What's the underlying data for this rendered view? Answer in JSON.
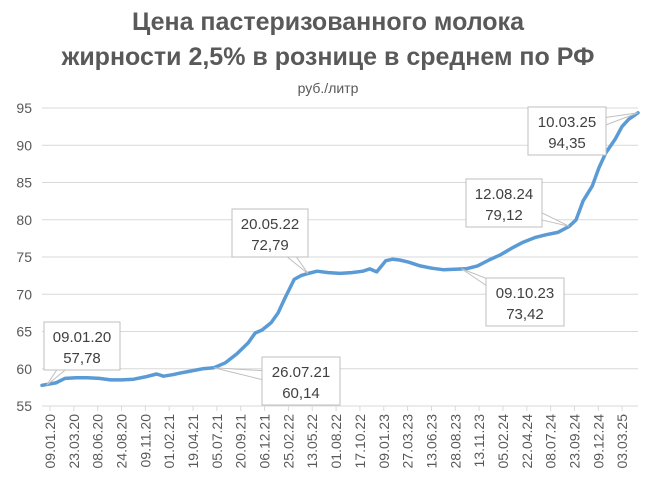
{
  "chart_data": {
    "type": "line",
    "title_line1": "Цена пастеризованного молока",
    "title_line2": "жирности 2,5% в рознице в среднем по РФ",
    "unit": "руб./литр",
    "ylim": [
      55,
      95
    ],
    "yticks": [
      "55",
      "60",
      "65",
      "70",
      "75",
      "80",
      "85",
      "90",
      "95"
    ],
    "xticks": [
      "09.01.20",
      "23.03.20",
      "08.06.20",
      "24.08.20",
      "09.11.20",
      "01.02.21",
      "19.04.21",
      "05.07.21",
      "20.09.21",
      "06.12.21",
      "25.02.22",
      "13.05.22",
      "01.08.22",
      "17.10.22",
      "09.01.23",
      "27.03.23",
      "13.06.23",
      "28.08.23",
      "13.11.23",
      "05.02.24",
      "22.04.24",
      "08.07.24",
      "23.09.24",
      "09.12.24",
      "03.03.25"
    ],
    "grid": true,
    "series": [
      {
        "color": "#5B9BD5",
        "points": [
          [
            0,
            57.78
          ],
          [
            0.6,
            58.1
          ],
          [
            1,
            58.7
          ],
          [
            1.5,
            58.8
          ],
          [
            2,
            58.8
          ],
          [
            2.5,
            58.7
          ],
          [
            3,
            58.5
          ],
          [
            3.5,
            58.5
          ],
          [
            4,
            58.6
          ],
          [
            4.5,
            58.9
          ],
          [
            5,
            59.3
          ],
          [
            5.3,
            59.0
          ],
          [
            5.7,
            59.2
          ],
          [
            6,
            59.4
          ],
          [
            6.5,
            59.7
          ],
          [
            7,
            60.0
          ],
          [
            7.5,
            60.14
          ],
          [
            8,
            60.8
          ],
          [
            8.5,
            62.0
          ],
          [
            9,
            63.5
          ],
          [
            9.3,
            64.8
          ],
          [
            9.6,
            65.2
          ],
          [
            10,
            66.2
          ],
          [
            10.3,
            67.5
          ],
          [
            10.6,
            69.5
          ],
          [
            11,
            72.0
          ],
          [
            11.3,
            72.5
          ],
          [
            11.6,
            72.79
          ],
          [
            12,
            73.1
          ],
          [
            12.5,
            72.9
          ],
          [
            13,
            72.8
          ],
          [
            13.5,
            72.9
          ],
          [
            14,
            73.1
          ],
          [
            14.3,
            73.4
          ],
          [
            14.6,
            73.0
          ],
          [
            15,
            74.5
          ],
          [
            15.3,
            74.7
          ],
          [
            15.6,
            74.6
          ],
          [
            16,
            74.3
          ],
          [
            16.5,
            73.8
          ],
          [
            17,
            73.5
          ],
          [
            17.5,
            73.3
          ],
          [
            18.5,
            73.42
          ],
          [
            19,
            73.8
          ],
          [
            19.5,
            74.6
          ],
          [
            20,
            75.3
          ],
          [
            20.5,
            76.2
          ],
          [
            21,
            77.0
          ],
          [
            21.5,
            77.6
          ],
          [
            22,
            78.0
          ],
          [
            22.5,
            78.3
          ],
          [
            23,
            79.12
          ],
          [
            23.3,
            80.0
          ],
          [
            23.6,
            82.5
          ],
          [
            24,
            84.5
          ],
          [
            24.3,
            87.0
          ],
          [
            24.6,
            89.0
          ],
          [
            25,
            90.8
          ],
          [
            25.3,
            92.5
          ],
          [
            25.6,
            93.5
          ],
          [
            26,
            94.35
          ]
        ]
      }
    ],
    "callouts": [
      {
        "date": "09.01.20",
        "value": "57,78"
      },
      {
        "date": "26.07.21",
        "value": "60,14"
      },
      {
        "date": "20.05.22",
        "value": "72,79"
      },
      {
        "date": "09.10.23",
        "value": "73,42"
      },
      {
        "date": "12.08.24",
        "value": "79,12"
      },
      {
        "date": "10.03.25",
        "value": "94,35"
      }
    ]
  }
}
